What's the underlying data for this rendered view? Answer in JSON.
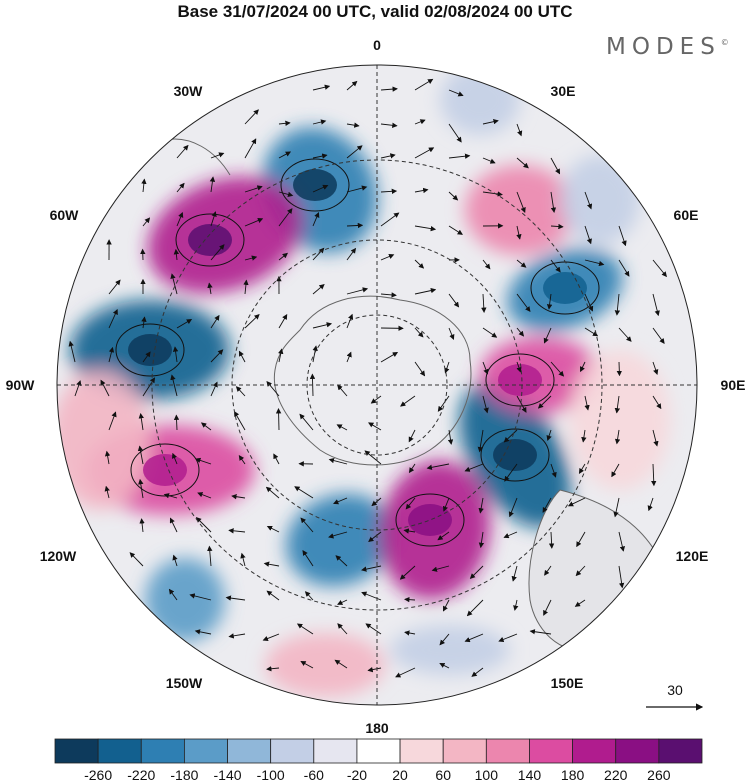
{
  "title": "Base 31/07/2024 00 UTC, valid 02/08/2024 00 UTC",
  "logo": "MODES",
  "logo_mark": "©",
  "map": {
    "projection": "south polar stereographic",
    "lon_labels": {
      "l0": "0",
      "l30e": "30E",
      "l60e": "60E",
      "l90e": "90E",
      "l120e": "120E",
      "l150e": "150E",
      "l180": "180",
      "l150w": "150W",
      "l120w": "120W",
      "l90w": "90W",
      "l60w": "60W",
      "l30w": "30W"
    }
  },
  "reference_vector": {
    "label": "30"
  },
  "colorbar": {
    "ticks": [
      "-260",
      "-220",
      "-180",
      "-140",
      "-100",
      "-60",
      "-20",
      "20",
      "60",
      "100",
      "140",
      "180",
      "220",
      "260"
    ],
    "colors": [
      "#0d3a5c",
      "#12608f",
      "#2e7fb3",
      "#5b9cc8",
      "#90b7d9",
      "#c3cfe6",
      "#e6e6f0",
      "#ffffff",
      "#f7d8dc",
      "#f3b6c4",
      "#ec86ae",
      "#dc4ca1",
      "#b01c8e",
      "#8a0f83",
      "#5a0f70"
    ]
  }
}
